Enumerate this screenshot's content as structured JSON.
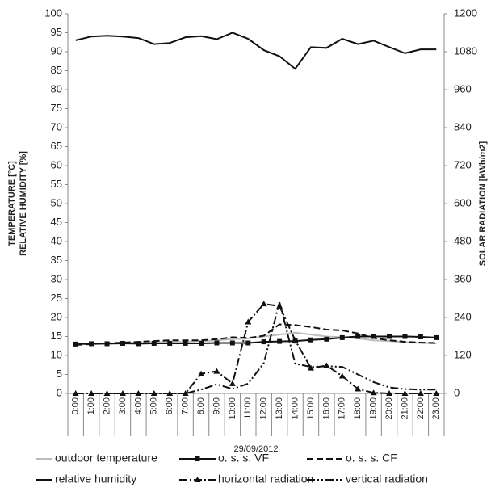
{
  "chart_data": {
    "type": "line",
    "ylabel": [
      "TEMPERATURE [°C]",
      "RELATIVE HUMIDITY [%]"
    ],
    "y2label": "SOLAR RADIATION [kWh/m2]",
    "xlabel": "29/09/2012",
    "categories": [
      "0:00",
      "1:00",
      "2:00",
      "3:00",
      "4:00",
      "5:00",
      "6:00",
      "7:00",
      "8:00",
      "9:00",
      "10:00",
      "11:00",
      "12:00",
      "13:00",
      "14:00",
      "15:00",
      "16:00",
      "17:00",
      "18:00",
      "19:00",
      "20:00",
      "21:00",
      "22:00",
      "23:00"
    ],
    "ylim": [
      0,
      100
    ],
    "yticks": [
      0,
      5,
      10,
      15,
      20,
      25,
      30,
      35,
      40,
      45,
      50,
      55,
      60,
      65,
      70,
      75,
      80,
      85,
      90,
      95,
      100
    ],
    "y2lim": [
      0,
      1200
    ],
    "y2ticks": [
      0,
      120,
      240,
      360,
      480,
      600,
      720,
      840,
      960,
      1080,
      1200
    ],
    "series": [
      {
        "name": "outdoor temperature",
        "color": "#bbbbbb",
        "dash": "solid",
        "marker": "none",
        "values": [
          13,
          13,
          13.2,
          13.3,
          13.4,
          13.5,
          13.5,
          13.6,
          13.8,
          14,
          14.3,
          14.5,
          15,
          15.5,
          16,
          15.5,
          15,
          14.8,
          14.5,
          14,
          13.8,
          13.5,
          13.3,
          13.2
        ]
      },
      {
        "name": "o. s. s.  VF",
        "color": "#111111",
        "dash": "solid",
        "marker": "square",
        "values": [
          13,
          13.1,
          13.1,
          13.2,
          13.1,
          13.2,
          13.2,
          13.2,
          13.2,
          13.3,
          13.3,
          13.3,
          13.6,
          13.7,
          13.8,
          14.1,
          14.3,
          14.7,
          15,
          15,
          15,
          15,
          14.9,
          14.7
        ]
      },
      {
        "name": "o. s. s.  CF",
        "color": "#111111",
        "dash": "dash",
        "marker": "none",
        "values": [
          12.8,
          13,
          13.2,
          13.4,
          13.6,
          13.8,
          14,
          14,
          14,
          14.3,
          14.8,
          14.6,
          15.2,
          18.2,
          18,
          17.5,
          16.8,
          16.6,
          15.8,
          14.6,
          14,
          13.6,
          13.4,
          13.3
        ]
      },
      {
        "name": "relative humidity",
        "color": "#111111",
        "dash": "solid",
        "marker": "none",
        "values": [
          93,
          94,
          94.2,
          94,
          93.6,
          92,
          92.3,
          93.8,
          94.1,
          93.3,
          95,
          93.4,
          90.4,
          88.8,
          85.5,
          91.2,
          91,
          93.4,
          92,
          92.9,
          91.2,
          89.6,
          90.6,
          90.6
        ]
      },
      {
        "name": "horizontal radiation",
        "color": "#111111",
        "dash": "dashdot",
        "marker": "triangle",
        "axis": "y2",
        "values": [
          0,
          0,
          0,
          0,
          0,
          0,
          0,
          0,
          62,
          70,
          31,
          226,
          283,
          276,
          168,
          80,
          88,
          55,
          14,
          2,
          0,
          0,
          0,
          0
        ]
      },
      {
        "name": "vertical radiation",
        "color": "#111111",
        "dash": "dashdotdot",
        "marker": "none",
        "axis": "y2",
        "values": [
          0,
          0,
          0,
          0,
          0,
          0,
          0,
          0,
          12,
          29,
          14,
          31,
          96,
          288,
          94,
          84,
          86,
          84,
          60,
          36,
          19,
          14,
          12,
          12
        ]
      }
    ]
  }
}
